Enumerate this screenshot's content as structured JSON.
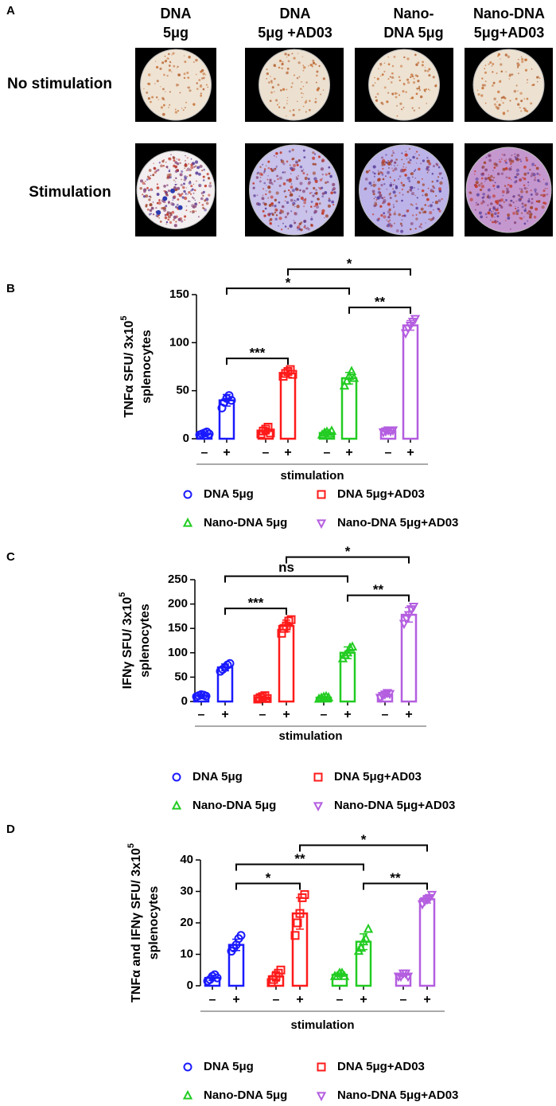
{
  "panel_a": {
    "label": "A",
    "columns": [
      [
        "DNA",
        "5μg"
      ],
      [
        "DNA",
        "5μg +AD03"
      ],
      [
        "Nano-",
        "DNA 5μg"
      ],
      [
        "Nano-DNA",
        "5μg+AD03"
      ]
    ],
    "rows": [
      "No stimulation",
      "Stimulation"
    ]
  },
  "chart_data": [
    {
      "type": "bar",
      "panel": "B",
      "ylabel": "TNFα SFU/ 3x10",
      "ylabel_sup": "5",
      "ylabel_line2": "splenocytes",
      "xlabel": "stimulation",
      "categories": [
        "–",
        "+",
        "–",
        "+",
        "–",
        "+",
        "–",
        "+"
      ],
      "ylim": [
        0,
        150
      ],
      "yticks": [
        0,
        50,
        100,
        150
      ],
      "series": [
        {
          "name": "DNA 5μg",
          "marker": "circle",
          "color": "#1a1aff",
          "values": [
            5,
            40,
            null,
            null,
            null,
            null,
            null,
            null
          ],
          "errors": [
            2,
            6,
            null,
            null,
            null,
            null,
            null,
            null
          ],
          "points": [
            [
              4,
              5,
              6,
              7,
              5
            ],
            [
              32,
              38,
              42,
              45,
              40
            ],
            null,
            null,
            null,
            null,
            null,
            null
          ]
        },
        {
          "name": "DNA 5μg+AD03",
          "marker": "square",
          "color": "#ff1a1a",
          "values": [
            null,
            null,
            8,
            68,
            null,
            null,
            null,
            null
          ],
          "errors": [
            null,
            null,
            3,
            4,
            null,
            null,
            null,
            null
          ],
          "points": [
            null,
            null,
            [
              5,
              8,
              10,
              12,
              6
            ],
            [
              65,
              68,
              70,
              72,
              67
            ],
            null,
            null,
            null,
            null
          ]
        },
        {
          "name": "Nano-DNA 5μg",
          "marker": "triangle-up",
          "color": "#22cc22",
          "values": [
            null,
            null,
            null,
            null,
            6,
            63,
            null,
            null
          ],
          "errors": [
            null,
            null,
            null,
            null,
            2,
            6,
            null,
            null
          ],
          "points": [
            null,
            null,
            null,
            null,
            [
              4,
              6,
              7,
              5,
              8
            ],
            [
              55,
              60,
              65,
              70,
              63
            ],
            null,
            null
          ]
        },
        {
          "name": "Nano-DNA 5μg+AD03",
          "marker": "triangle-down",
          "color": "#b45ee0",
          "values": [
            null,
            null,
            null,
            null,
            null,
            null,
            8,
            118
          ],
          "errors": [
            null,
            null,
            null,
            null,
            null,
            null,
            2,
            5
          ],
          "points": [
            null,
            null,
            null,
            null,
            null,
            null,
            [
              7,
              8,
              9,
              8,
              9
            ],
            [
              110,
              115,
              118,
              122,
              125
            ]
          ]
        }
      ],
      "annotations": [
        {
          "from": 1,
          "to": 3,
          "label": "***"
        },
        {
          "from": 5,
          "to": 7,
          "label": "**"
        },
        {
          "from": 1,
          "to": 5,
          "label": "*"
        },
        {
          "from": 3,
          "to": 7,
          "label": "*"
        }
      ]
    },
    {
      "type": "bar",
      "panel": "C",
      "ylabel": "IFNγ SFU/ 3x10",
      "ylabel_sup": "5",
      "ylabel_line2": "splenocytes",
      "xlabel": "stimulation",
      "categories": [
        "–",
        "+",
        "–",
        "+",
        "–",
        "+",
        "–",
        "+"
      ],
      "ylim": [
        0,
        250
      ],
      "yticks": [
        0,
        50,
        100,
        150,
        200,
        250
      ],
      "series": [
        {
          "name": "DNA 5μg",
          "marker": "circle",
          "color": "#1a1aff",
          "values": [
            12,
            70,
            null,
            null,
            null,
            null,
            null,
            null
          ],
          "errors": [
            2,
            7,
            null,
            null,
            null,
            null,
            null,
            null
          ],
          "points": [
            [
              10,
              12,
              14,
              13,
              11
            ],
            [
              62,
              66,
              70,
              75,
              78
            ],
            null,
            null,
            null,
            null,
            null,
            null
          ]
        },
        {
          "name": "DNA 5μg+AD03",
          "marker": "square",
          "color": "#ff1a1a",
          "values": [
            null,
            null,
            8,
            155,
            null,
            null,
            null,
            null
          ],
          "errors": [
            null,
            null,
            3,
            12,
            null,
            null,
            null,
            null
          ],
          "points": [
            null,
            null,
            [
              5,
              8,
              10,
              12,
              6
            ],
            [
              140,
              150,
              155,
              165,
              168
            ],
            null,
            null,
            null,
            null
          ]
        },
        {
          "name": "Nano-DNA 5μg",
          "marker": "triangle-up",
          "color": "#22cc22",
          "values": [
            null,
            null,
            null,
            null,
            8,
            100,
            null,
            null
          ],
          "errors": [
            null,
            null,
            null,
            null,
            2,
            12,
            null,
            null
          ],
          "points": [
            null,
            null,
            null,
            null,
            [
              5,
              7,
              9,
              10,
              8
            ],
            [
              88,
              95,
              100,
              110,
              112
            ],
            null,
            null
          ]
        },
        {
          "name": "Nano-DNA 5μg+AD03",
          "marker": "triangle-down",
          "color": "#b45ee0",
          "values": [
            null,
            null,
            null,
            null,
            null,
            null,
            14,
            178
          ],
          "errors": [
            null,
            null,
            null,
            null,
            null,
            null,
            4,
            15
          ],
          "points": [
            null,
            null,
            null,
            null,
            null,
            null,
            [
              8,
              12,
              15,
              18,
              16
            ],
            [
              160,
              170,
              178,
              190,
              195
            ]
          ]
        }
      ],
      "annotations": [
        {
          "from": 1,
          "to": 3,
          "label": "***"
        },
        {
          "from": 5,
          "to": 7,
          "label": "**"
        },
        {
          "from": 1,
          "to": 5,
          "label": "ns"
        },
        {
          "from": 3,
          "to": 7,
          "label": "*"
        }
      ]
    },
    {
      "type": "bar",
      "panel": "D",
      "ylabel": "TNFα and IFNγ SFU/ 3x10",
      "ylabel_sup": "5",
      "ylabel_line2": "splenocytes",
      "xlabel": "stimulation",
      "categories": [
        "–",
        "+",
        "–",
        "+",
        "–",
        "+",
        "–",
        "+"
      ],
      "ylim": [
        0,
        40
      ],
      "yticks": [
        0,
        10,
        20,
        30,
        40
      ],
      "series": [
        {
          "name": "DNA 5μg",
          "marker": "circle",
          "color": "#1a1aff",
          "values": [
            2.5,
            13,
            null,
            null,
            null,
            null,
            null,
            null
          ],
          "errors": [
            0.8,
            1.8,
            null,
            null,
            null,
            null,
            null,
            null
          ],
          "points": [
            [
              1.5,
              2,
              3,
              3.5,
              2.5
            ],
            [
              11,
              12,
              13,
              15,
              16
            ],
            null,
            null,
            null,
            null,
            null,
            null
          ]
        },
        {
          "name": "DNA 5μg+AD03",
          "marker": "square",
          "color": "#ff1a1a",
          "values": [
            null,
            null,
            3,
            23,
            null,
            null,
            null,
            null
          ],
          "errors": [
            null,
            null,
            1.5,
            5,
            null,
            null,
            null,
            null
          ],
          "points": [
            null,
            null,
            [
              1,
              2,
              3,
              4,
              5
            ],
            [
              16,
              20,
              23,
              28,
              29
            ],
            null,
            null,
            null,
            null
          ]
        },
        {
          "name": "Nano-DNA 5μg",
          "marker": "triangle-up",
          "color": "#22cc22",
          "values": [
            null,
            null,
            null,
            null,
            3.5,
            14,
            null,
            null
          ],
          "errors": [
            null,
            null,
            null,
            null,
            0.5,
            2.5,
            null,
            null
          ],
          "points": [
            null,
            null,
            null,
            null,
            [
              3,
              3,
              4,
              4,
              3
            ],
            [
              11,
              12,
              14,
              15,
              18
            ],
            null,
            null
          ]
        },
        {
          "name": "Nano-DNA 5μg+AD03",
          "marker": "triangle-down",
          "color": "#b45ee0",
          "values": [
            null,
            null,
            null,
            null,
            null,
            null,
            3.5,
            27.5
          ],
          "errors": [
            null,
            null,
            null,
            null,
            null,
            null,
            0.5,
            1.2
          ],
          "points": [
            null,
            null,
            null,
            null,
            null,
            null,
            [
              3,
              3,
              4,
              4,
              3
            ],
            [
              26,
              27,
              27.5,
              28,
              29
            ]
          ]
        }
      ],
      "annotations": [
        {
          "from": 1,
          "to": 3,
          "label": "*"
        },
        {
          "from": 5,
          "to": 7,
          "label": "**"
        },
        {
          "from": 1,
          "to": 5,
          "label": "**"
        },
        {
          "from": 3,
          "to": 7,
          "label": "*"
        }
      ]
    }
  ]
}
